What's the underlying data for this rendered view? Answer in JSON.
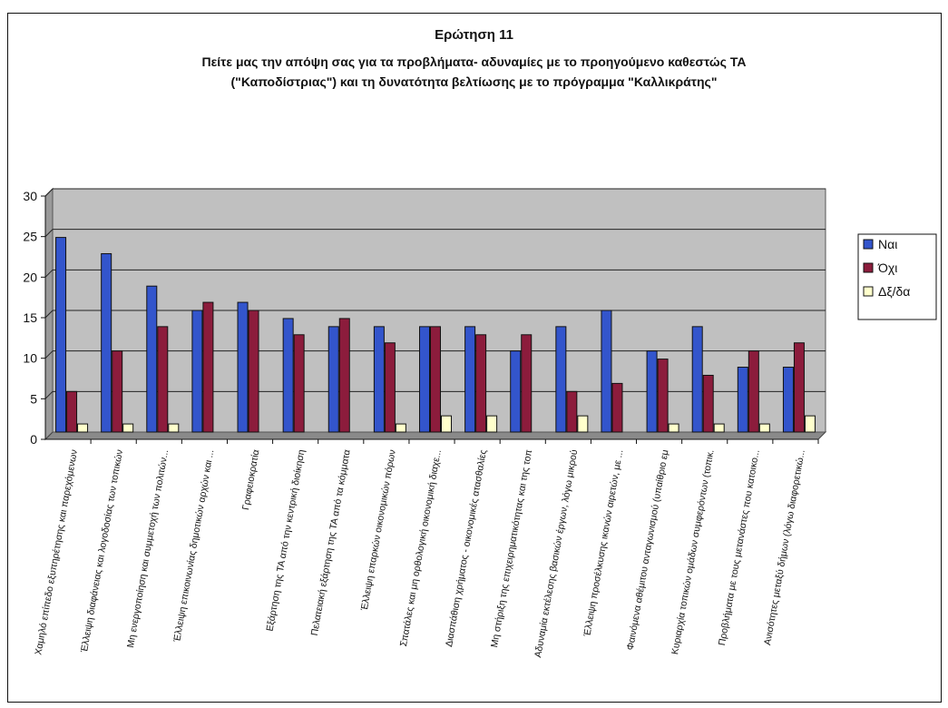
{
  "chart_data": {
    "type": "bar",
    "title": "Ερώτηση 11",
    "subtitle_lines": [
      "Πείτε μας την απόψη σας για τα προβλήματα- αδυναμίες με το προηγούμενο καθεστώς ΤΑ",
      "(\"Καποδίστριας\") και τη δυνατότητα βελτίωσης με το πρόγραμμα \"Καλλικράτης\""
    ],
    "xlabel": "",
    "ylabel": "",
    "ylim": [
      0,
      30
    ],
    "yticks": [
      "0",
      "5",
      "10",
      "15",
      "20",
      "25",
      "30"
    ],
    "grid": true,
    "legend_position": "right",
    "categories": [
      "Χαμηλό επίπεδο εξυπηρέτησης και παρεχόμενων",
      "Έλλειψη διαφάνειας και λογοδοσίας των τοπικών",
      "Μη ενεργοποίηση και συμμετοχή των πολιτών...",
      "Έλλειψη επικοινωνίας δημοτικών αρχών και ...",
      "Γραφειοκρατία",
      "Εξάρτηση της ΤΑ από την κεντρική διοίκηση",
      "Πελατειακή εξάρτηση της ΤΑ από τα κόμματα",
      "Έλλειψη επαρκών οικονομικών πόρων",
      "Σπατάλες και μη ορθολογική οικονομική διαχε...",
      "Διασπάθιση χρήματος - οικονομικές ατασθαλίες",
      "Μη στήριξη της επιχειρηματικότητας και της τοπ",
      "Αδυναμία εκτέλεσης βασικών έργων, λόγω μικρού",
      "Έλλειψη προσέλκυσης ικανών αιρετών, με ...",
      "Φαινόμενα αθέμιτου ανταγωνισμού (υπαίθριο εμ",
      "Κυριαρχία τοπικών ομάδων συμφερόντων (τοπικ.",
      "Προβλήματα με τους μετανάστες που κατοικο...",
      "Ανισότητες μεταξύ δήμων (λόγω διαφορετικώ..."
    ],
    "series": [
      {
        "name": "Ναι",
        "color": "#3355cc",
        "values": [
          24,
          22,
          18,
          15,
          16,
          14,
          13,
          13,
          13,
          13,
          10,
          13,
          15,
          10,
          13,
          8,
          8
        ]
      },
      {
        "name": "Όχι",
        "color": "#8c1c3c",
        "values": [
          5,
          10,
          13,
          16,
          15,
          12,
          14,
          11,
          13,
          12,
          12,
          5,
          6,
          9,
          7,
          10,
          11
        ]
      },
      {
        "name": "Δξ/δα",
        "color": "#ffffcc",
        "values": [
          1,
          1,
          1,
          0,
          0,
          0,
          0,
          1,
          2,
          2,
          0,
          2,
          0,
          1,
          1,
          1,
          2
        ]
      }
    ],
    "plot_background": "#c0c0c0"
  }
}
